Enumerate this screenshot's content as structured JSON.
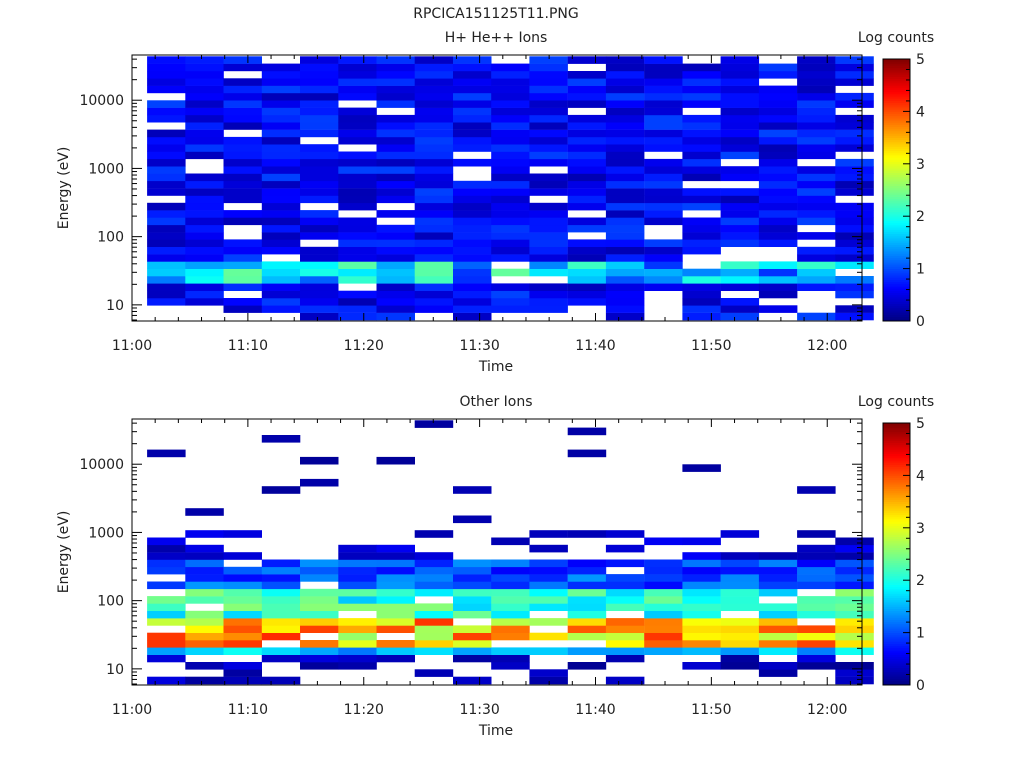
{
  "figure_title": "RPCICA151125T11.PNG",
  "chart_data": [
    {
      "type": "heatmap",
      "title": "H+ He++ Ions",
      "xlabel": "Time",
      "ylabel": "Energy (eV)",
      "y_scale": "log",
      "x_ticks": [
        "11:00",
        "11:10",
        "11:20",
        "11:30",
        "11:40",
        "11:50",
        "12:00"
      ],
      "y_ticks": [
        "10",
        "100",
        "1000",
        "10000"
      ],
      "colorbar": {
        "label": "Log counts",
        "ticks": [
          "0",
          "1",
          "2",
          "3",
          "4",
          "5"
        ],
        "range": [
          0,
          5
        ]
      },
      "time_bins": 19,
      "energy_bins": 36,
      "values": []
    },
    {
      "type": "heatmap",
      "title": "Other Ions",
      "xlabel": "Time",
      "ylabel": "Energy (eV)",
      "y_scale": "log",
      "x_ticks": [
        "11:00",
        "11:10",
        "11:20",
        "11:30",
        "11:40",
        "11:50",
        "12:00"
      ],
      "y_ticks": [
        "10",
        "100",
        "1000",
        "10000"
      ],
      "colorbar": {
        "label": "Log counts",
        "ticks": [
          "0",
          "1",
          "2",
          "3",
          "4",
          "5"
        ],
        "range": [
          0,
          5
        ]
      },
      "time_bins": 19,
      "energy_bins": 36,
      "values": []
    }
  ]
}
